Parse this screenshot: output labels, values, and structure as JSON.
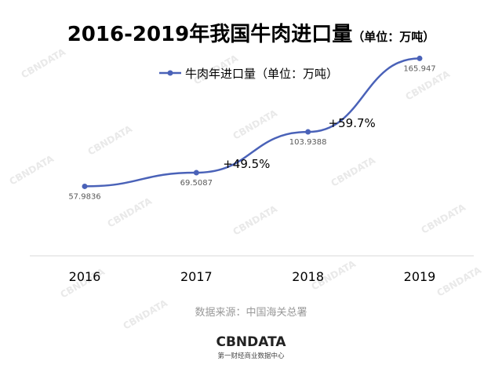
{
  "header": {
    "title_main": "2016-2019年我国牛肉进口量",
    "title_unit": "（单位：万吨）"
  },
  "legend": {
    "label": "牛肉年进口量（单位：万吨）"
  },
  "source": "数据来源：中国海关总署",
  "brand": {
    "name": "CBNDATA",
    "tagline": "第一财经商业数据中心"
  },
  "watermark": "CBNDATA",
  "colors": {
    "line": "#4a62b8",
    "axis": "#d9d9d9",
    "text": "#000000",
    "label": "#595959",
    "source": "#999999",
    "watermark": "#e9e9e9"
  },
  "chart_data": {
    "type": "line",
    "categories": [
      "2016",
      "2017",
      "2018",
      "2019"
    ],
    "series": [
      {
        "name": "牛肉年进口量（单位：万吨）",
        "values": [
          57.9836,
          69.5087,
          103.9388,
          165.947
        ],
        "data_labels": [
          "57.9836",
          "69.5087",
          "103.9388",
          "165.947"
        ]
      }
    ],
    "annotations": [
      "+49.5%",
      "+59.7%"
    ],
    "legend_position": "top",
    "grid": false
  }
}
